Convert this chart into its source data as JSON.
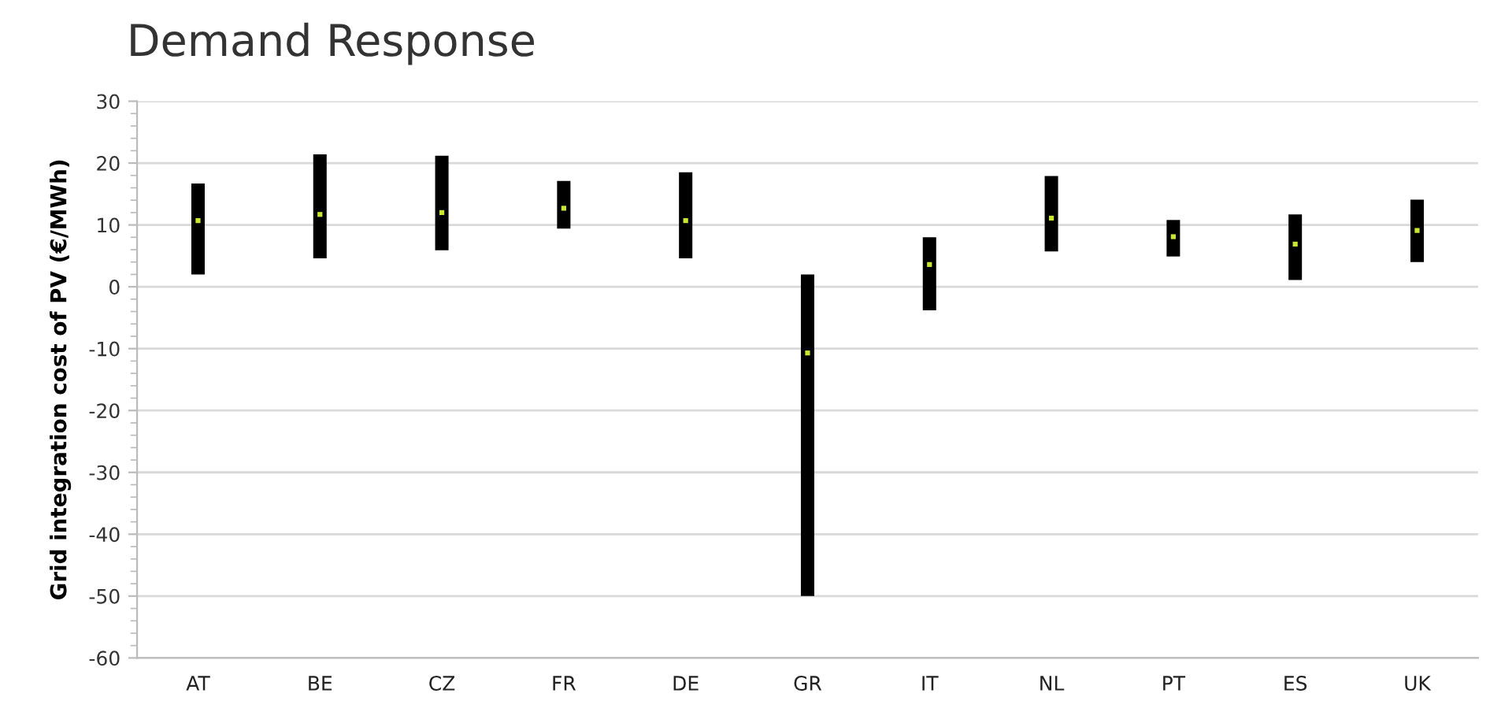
{
  "chart_data": {
    "type": "bar",
    "title": "Demand Response",
    "ylabel": "Grid integration cost of PV (€/MWh)",
    "categories": [
      "AT",
      "BE",
      "CZ",
      "FR",
      "DE",
      "GR",
      "IT",
      "NL",
      "PT",
      "ES",
      "UK"
    ],
    "series": [
      {
        "color": "#000000",
        "base": [
          2.0,
          4.6,
          5.9,
          9.4,
          4.6,
          -50.0,
          -3.8,
          5.7,
          4.9,
          1.1,
          4.0
        ],
        "values": [
          14.7,
          16.8,
          15.3,
          7.7,
          13.9,
          52.0,
          11.8,
          12.2,
          5.9,
          10.6,
          10.1
        ]
      },
      {
        "type": "scatter",
        "color": "#c8e632",
        "marker": "square",
        "x": [
          "AT",
          "BE",
          "CZ",
          "FR",
          "DE",
          "GR",
          "IT",
          "NL",
          "PT",
          "ES",
          "UK"
        ],
        "values": [
          10.7,
          11.7,
          12.0,
          12.7,
          10.7,
          -10.7,
          3.6,
          11.1,
          8.1,
          6.9,
          9.1
        ]
      }
    ],
    "ylim": [
      -60,
      30
    ],
    "yticks": [
      -60,
      -50,
      -40,
      -30,
      -20,
      -10,
      0,
      10,
      20,
      30
    ],
    "grid": "y"
  }
}
